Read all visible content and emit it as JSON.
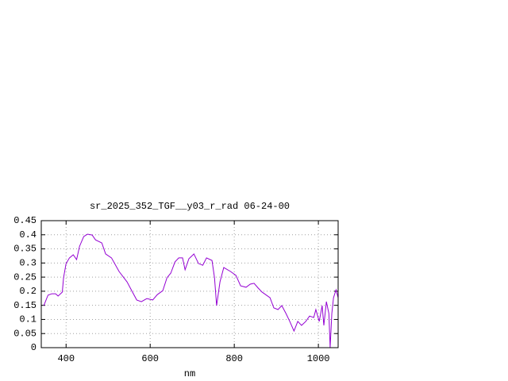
{
  "chart_data": {
    "type": "line",
    "title": "sr_2025_352_TGF__y03_r_rad 06-24-00",
    "xlabel": "nm",
    "xlim": [
      341,
      1047
    ],
    "xticks": [
      400,
      600,
      800,
      1000
    ],
    "ylim": [
      0,
      0.45
    ],
    "yticks": [
      0,
      0.05,
      0.1,
      0.15,
      0.2,
      0.25,
      0.3,
      0.35,
      0.4,
      0.45
    ],
    "grid": true,
    "series": [
      {
        "color": "#9400d3",
        "x": [
          347,
          357,
          366,
          375,
          381,
          391,
          394,
          400,
          408,
          417,
          425,
          432,
          442,
          451,
          462,
          470,
          485,
          494,
          508,
          526,
          545,
          555,
          568,
          579,
          592,
          606,
          617,
          630,
          640,
          649,
          659,
          668,
          677,
          683,
          692,
          704,
          715,
          725,
          734,
          747,
          753,
          758,
          766,
          775,
          791,
          804,
          815,
          828,
          838,
          847,
          857,
          866,
          885,
          894,
          904,
          913,
          923,
          932,
          942,
          951,
          960,
          970,
          979,
          989,
          994,
          1002,
          1009,
          1013,
          1019,
          1025,
          1028,
          1032,
          1036,
          1042,
          1047
        ],
        "values": [
          0.149,
          0.186,
          0.191,
          0.191,
          0.183,
          0.197,
          0.248,
          0.298,
          0.318,
          0.329,
          0.312,
          0.359,
          0.394,
          0.402,
          0.399,
          0.382,
          0.371,
          0.332,
          0.318,
          0.27,
          0.233,
          0.205,
          0.169,
          0.163,
          0.174,
          0.169,
          0.188,
          0.202,
          0.248,
          0.264,
          0.304,
          0.318,
          0.318,
          0.276,
          0.315,
          0.332,
          0.298,
          0.292,
          0.318,
          0.309,
          0.248,
          0.149,
          0.233,
          0.284,
          0.27,
          0.256,
          0.219,
          0.214,
          0.225,
          0.228,
          0.211,
          0.197,
          0.177,
          0.141,
          0.135,
          0.149,
          0.121,
          0.093,
          0.059,
          0.093,
          0.079,
          0.093,
          0.112,
          0.107,
          0.135,
          0.093,
          0.149,
          0.079,
          0.163,
          0.121,
          0.0,
          0.121,
          0.177,
          0.205,
          0.177
        ]
      }
    ]
  }
}
